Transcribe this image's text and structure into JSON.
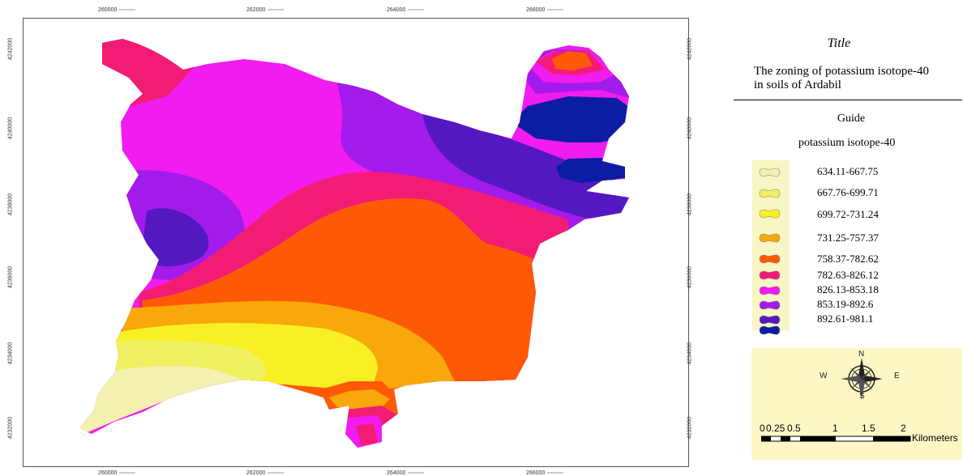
{
  "map": {
    "x_ticks": [
      "260000",
      "262000",
      "264000",
      "266000"
    ],
    "y_ticks": [
      "4242000",
      "4240000",
      "4238000",
      "4236000",
      "4234000",
      "4232000"
    ],
    "zones_shown": [
      "634.11-667.75",
      "667.76-699.71",
      "699.72-731.24",
      "731.25-757.37",
      "758.37-782.62",
      "782.63-826.12",
      "826.13-853.18",
      "853.19-892.6",
      "892.61-981.1"
    ]
  },
  "panel": {
    "title": "Title",
    "description": "The zoning of potassium isotope-40 in soils of Ardabil",
    "guide": "Guide",
    "legend_heading": "potassium isotope-40"
  },
  "legend": [
    {
      "label": "634.11-667.75",
      "color": "#f3f0b0"
    },
    {
      "label": "667.76-699.71",
      "color": "#f0f060"
    },
    {
      "label": "699.72-731.24",
      "color": "#f8f023"
    },
    {
      "label": "731.25-757.37",
      "color": "#f8a80a"
    },
    {
      "label": "758.37-782.62",
      "color": "#fe5a06"
    },
    {
      "label": "782.63-826.12",
      "color": "#f31c74"
    },
    {
      "label": "826.13-853.18",
      "color": "#f01cf0"
    },
    {
      "label": "853.19-892.6",
      "color": "#a31bea"
    },
    {
      "label": "892.61-981.1",
      "color": "#5418c0"
    },
    {
      "label": "",
      "color": "#0b1da2"
    }
  ],
  "compass": {
    "n": "N",
    "s": "S",
    "e": "E",
    "w": "W"
  },
  "scale": {
    "ticks": [
      "0",
      "0.25",
      "0.5",
      "1",
      "1.5",
      "2"
    ],
    "unit": "Kilometers"
  }
}
